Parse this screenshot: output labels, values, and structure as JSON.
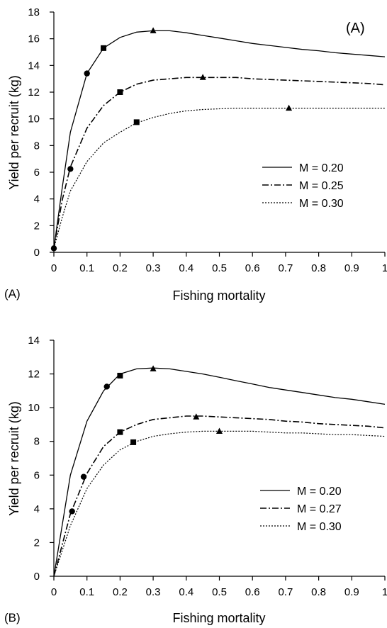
{
  "chart_data": [
    {
      "type": "line",
      "panel_label": "(A)",
      "inset_label": "(A)",
      "xlabel": "Fishing mortality",
      "ylabel": "Yield per recruit (kg)",
      "xlim": [
        0,
        1
      ],
      "ylim": [
        0,
        18
      ],
      "xticks": [
        "0",
        "0.1",
        "0.2",
        "0.3",
        "0.4",
        "0.5",
        "0.6",
        "0.7",
        "0.8",
        "0.9",
        "1"
      ],
      "yticks": [
        "0",
        "2",
        "4",
        "6",
        "8",
        "10",
        "12",
        "14",
        "16",
        "18"
      ],
      "legend_position": "right-middle",
      "series": [
        {
          "name": "M = 0.20",
          "style": "solid",
          "points": [
            [
              0,
              0.3
            ],
            [
              0.025,
              4.8
            ],
            [
              0.05,
              9.0
            ],
            [
              0.1,
              13.4
            ],
            [
              0.15,
              15.3
            ],
            [
              0.2,
              16.1
            ],
            [
              0.25,
              16.5
            ],
            [
              0.3,
              16.6
            ],
            [
              0.35,
              16.6
            ],
            [
              0.4,
              16.45
            ],
            [
              0.45,
              16.25
            ],
            [
              0.5,
              16.05
            ],
            [
              0.55,
              15.85
            ],
            [
              0.6,
              15.65
            ],
            [
              0.65,
              15.5
            ],
            [
              0.7,
              15.35
            ],
            [
              0.75,
              15.2
            ],
            [
              0.8,
              15.1
            ],
            [
              0.85,
              14.95
            ],
            [
              0.9,
              14.85
            ],
            [
              0.95,
              14.75
            ],
            [
              1.0,
              14.65
            ]
          ],
          "markers": [
            {
              "x": 0.1,
              "y": 13.4,
              "shape": "circle"
            },
            {
              "x": 0.15,
              "y": 15.3,
              "shape": "square"
            },
            {
              "x": 0.3,
              "y": 16.6,
              "shape": "triangle"
            }
          ]
        },
        {
          "name": "M = 0.25",
          "style": "dashdot",
          "points": [
            [
              0,
              0.3
            ],
            [
              0.025,
              3.9
            ],
            [
              0.05,
              6.4
            ],
            [
              0.1,
              9.3
            ],
            [
              0.15,
              11.0
            ],
            [
              0.2,
              12.0
            ],
            [
              0.25,
              12.6
            ],
            [
              0.3,
              12.9
            ],
            [
              0.35,
              13.0
            ],
            [
              0.4,
              13.1
            ],
            [
              0.45,
              13.1
            ],
            [
              0.5,
              13.1
            ],
            [
              0.55,
              13.1
            ],
            [
              0.6,
              13.0
            ],
            [
              0.65,
              12.95
            ],
            [
              0.7,
              12.9
            ],
            [
              0.75,
              12.85
            ],
            [
              0.8,
              12.8
            ],
            [
              0.85,
              12.75
            ],
            [
              0.9,
              12.7
            ],
            [
              0.95,
              12.65
            ],
            [
              1.0,
              12.55
            ]
          ],
          "markers": [
            {
              "x": 0.2,
              "y": 12.0,
              "shape": "square"
            },
            {
              "x": 0.45,
              "y": 13.1,
              "shape": "triangle"
            }
          ]
        },
        {
          "name": "M = 0.30",
          "style": "dotted",
          "points": [
            [
              0,
              0.3
            ],
            [
              0.025,
              2.6
            ],
            [
              0.05,
              4.6
            ],
            [
              0.1,
              6.8
            ],
            [
              0.15,
              8.2
            ],
            [
              0.2,
              9.0
            ],
            [
              0.25,
              9.7
            ],
            [
              0.3,
              10.1
            ],
            [
              0.35,
              10.4
            ],
            [
              0.4,
              10.6
            ],
            [
              0.45,
              10.7
            ],
            [
              0.5,
              10.75
            ],
            [
              0.55,
              10.8
            ],
            [
              0.6,
              10.8
            ],
            [
              0.65,
              10.8
            ],
            [
              0.7,
              10.8
            ],
            [
              0.75,
              10.8
            ],
            [
              0.8,
              10.8
            ],
            [
              0.85,
              10.8
            ],
            [
              0.9,
              10.8
            ],
            [
              0.95,
              10.8
            ],
            [
              1.0,
              10.8
            ]
          ],
          "markers": [
            {
              "x": 0.05,
              "y": 6.25,
              "shape": "circle"
            },
            {
              "x": 0.25,
              "y": 9.75,
              "shape": "square"
            },
            {
              "x": 0.71,
              "y": 10.8,
              "shape": "triangle"
            }
          ]
        }
      ],
      "extra_markers": [
        {
          "x": 0,
          "y": 0.3,
          "shape": "circle"
        }
      ]
    },
    {
      "type": "line",
      "panel_label": "(B)",
      "xlabel": "Fishing mortality",
      "ylabel": "Yield per recruit (kg)",
      "xlim": [
        0,
        1
      ],
      "ylim": [
        0,
        14
      ],
      "xticks": [
        "0",
        "0.1",
        "0.2",
        "0.3",
        "0.4",
        "0.5",
        "0.6",
        "0.7",
        "0.8",
        "0.9",
        "1"
      ],
      "yticks": [
        "0",
        "2",
        "4",
        "6",
        "8",
        "10",
        "12",
        "14"
      ],
      "legend_position": "right-middle",
      "series": [
        {
          "name": "M = 0.20",
          "style": "solid",
          "points": [
            [
              0,
              0
            ],
            [
              0.05,
              6.0
            ],
            [
              0.1,
              9.2
            ],
            [
              0.15,
              11.0
            ],
            [
              0.2,
              12.0
            ],
            [
              0.25,
              12.3
            ],
            [
              0.3,
              12.35
            ],
            [
              0.35,
              12.3
            ],
            [
              0.4,
              12.15
            ],
            [
              0.45,
              12.0
            ],
            [
              0.5,
              11.8
            ],
            [
              0.55,
              11.6
            ],
            [
              0.6,
              11.4
            ],
            [
              0.65,
              11.2
            ],
            [
              0.7,
              11.05
            ],
            [
              0.75,
              10.9
            ],
            [
              0.8,
              10.75
            ],
            [
              0.85,
              10.6
            ],
            [
              0.9,
              10.5
            ],
            [
              0.95,
              10.35
            ],
            [
              1.0,
              10.2
            ]
          ],
          "markers": [
            {
              "x": 0.16,
              "y": 11.25,
              "shape": "circle"
            },
            {
              "x": 0.2,
              "y": 11.9,
              "shape": "square"
            },
            {
              "x": 0.3,
              "y": 12.3,
              "shape": "triangle"
            }
          ]
        },
        {
          "name": "M = 0.27",
          "style": "dashdot",
          "points": [
            [
              0,
              0
            ],
            [
              0.05,
              3.7
            ],
            [
              0.1,
              6.1
            ],
            [
              0.15,
              7.7
            ],
            [
              0.2,
              8.55
            ],
            [
              0.25,
              9.0
            ],
            [
              0.3,
              9.3
            ],
            [
              0.35,
              9.4
            ],
            [
              0.4,
              9.5
            ],
            [
              0.45,
              9.5
            ],
            [
              0.5,
              9.45
            ],
            [
              0.55,
              9.4
            ],
            [
              0.6,
              9.35
            ],
            [
              0.65,
              9.3
            ],
            [
              0.7,
              9.2
            ],
            [
              0.75,
              9.15
            ],
            [
              0.8,
              9.05
            ],
            [
              0.85,
              9.0
            ],
            [
              0.9,
              8.95
            ],
            [
              0.95,
              8.9
            ],
            [
              1.0,
              8.8
            ]
          ],
          "markers": [
            {
              "x": 0.09,
              "y": 5.9,
              "shape": "circle"
            },
            {
              "x": 0.2,
              "y": 8.55,
              "shape": "square"
            },
            {
              "x": 0.43,
              "y": 9.45,
              "shape": "triangle"
            }
          ]
        },
        {
          "name": "M = 0.30",
          "style": "dotted",
          "points": [
            [
              0,
              0
            ],
            [
              0.05,
              3.0
            ],
            [
              0.1,
              5.2
            ],
            [
              0.15,
              6.6
            ],
            [
              0.2,
              7.5
            ],
            [
              0.25,
              8.0
            ],
            [
              0.3,
              8.3
            ],
            [
              0.35,
              8.45
            ],
            [
              0.4,
              8.55
            ],
            [
              0.45,
              8.6
            ],
            [
              0.5,
              8.6
            ],
            [
              0.55,
              8.6
            ],
            [
              0.6,
              8.6
            ],
            [
              0.65,
              8.55
            ],
            [
              0.7,
              8.5
            ],
            [
              0.75,
              8.5
            ],
            [
              0.8,
              8.45
            ],
            [
              0.85,
              8.4
            ],
            [
              0.9,
              8.4
            ],
            [
              0.95,
              8.35
            ],
            [
              1.0,
              8.3
            ]
          ],
          "markers": [
            {
              "x": 0.055,
              "y": 3.85,
              "shape": "circle"
            },
            {
              "x": 0.24,
              "y": 7.95,
              "shape": "square"
            },
            {
              "x": 0.5,
              "y": 8.6,
              "shape": "triangle"
            }
          ]
        }
      ]
    }
  ]
}
